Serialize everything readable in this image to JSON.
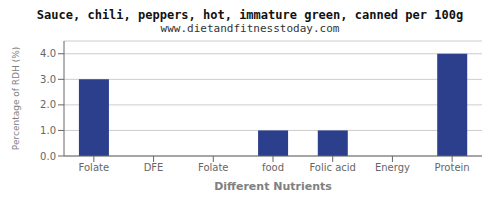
{
  "chart_data": {
    "type": "bar",
    "title": "Sauce, chili, peppers, hot, immature green, canned per 100g",
    "subtitle": "www.dietandfitnesstoday.com",
    "xlabel": "Different Nutrients",
    "ylabel": "Percentage of RDH (%)",
    "categories": [
      "Folate",
      "DFE",
      "Folate",
      "food",
      "Folic acid",
      "Energy",
      "Protein"
    ],
    "values": [
      3.0,
      0.0,
      0.0,
      1.0,
      1.0,
      0.0,
      4.0
    ],
    "color": "#2B3F8C",
    "ylim": [
      0,
      4.5
    ],
    "yticks": [
      {
        "value": 0.0,
        "label": "0.0"
      },
      {
        "value": 1.0,
        "label": "1.0"
      },
      {
        "value": 2.0,
        "label": "2.0"
      },
      {
        "value": 3.0,
        "label": "3.0"
      },
      {
        "value": 4.0,
        "label": "4.0"
      }
    ],
    "grid": true
  }
}
